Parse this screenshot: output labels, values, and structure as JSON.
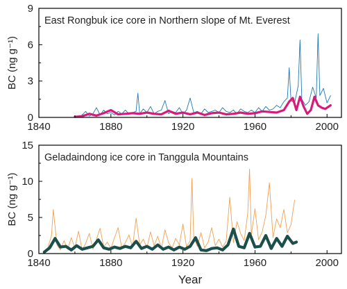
{
  "chart_data": [
    {
      "type": "line",
      "annotation": "East Rongbuk ice core in Northern slope of  Mt. Everest",
      "ylabel": "BC (ng g⁻¹)",
      "xlabel": "",
      "xlim": [
        1840,
        2008
      ],
      "ylim": [
        0,
        9
      ],
      "xticks": [
        1840,
        1880,
        1920,
        1960,
        2000
      ],
      "yticks": [
        0,
        3,
        6,
        9
      ],
      "grid": false,
      "series": [
        {
          "kind": "raw",
          "color": "#1f77b4",
          "x": [
            1862,
            1864,
            1866,
            1868,
            1870,
            1872,
            1874,
            1876,
            1878,
            1880,
            1882,
            1884,
            1886,
            1888,
            1890,
            1892,
            1894,
            1895,
            1896,
            1898,
            1900,
            1902,
            1904,
            1906,
            1908,
            1910,
            1912,
            1914,
            1916,
            1918,
            1920,
            1922,
            1924,
            1926,
            1928,
            1930,
            1932,
            1934,
            1936,
            1938,
            1940,
            1942,
            1944,
            1946,
            1948,
            1950,
            1952,
            1954,
            1956,
            1958,
            1960,
            1962,
            1964,
            1966,
            1968,
            1970,
            1972,
            1974,
            1976,
            1978,
            1979,
            1980,
            1982,
            1984,
            1985,
            1986,
            1988,
            1990,
            1992,
            1994,
            1995,
            1996,
            1998,
            2000,
            2002
          ],
          "y": [
            0.0,
            0.2,
            0.5,
            0.1,
            0.3,
            0.8,
            0.2,
            0.6,
            0.3,
            0.4,
            0.2,
            0.5,
            0.3,
            0.6,
            0.3,
            0.4,
            0.5,
            2.0,
            0.3,
            0.7,
            0.4,
            0.9,
            0.3,
            0.5,
            0.6,
            1.4,
            0.3,
            0.5,
            0.4,
            0.8,
            0.3,
            0.6,
            1.6,
            0.4,
            0.5,
            0.3,
            0.7,
            0.4,
            0.5,
            0.6,
            0.4,
            0.8,
            0.5,
            0.4,
            0.6,
            0.3,
            0.7,
            0.5,
            0.4,
            0.6,
            0.4,
            0.8,
            0.5,
            0.9,
            0.6,
            0.7,
            1.0,
            0.8,
            1.3,
            1.6,
            4.1,
            1.4,
            1.2,
            2.6,
            6.4,
            1.5,
            1.0,
            1.3,
            2.5,
            1.6,
            6.9,
            1.8,
            2.4,
            1.2,
            1.8
          ]
        },
        {
          "kind": "smoothed",
          "color": "#d81b7a",
          "x": [
            1860,
            1864,
            1868,
            1872,
            1876,
            1880,
            1884,
            1888,
            1892,
            1896,
            1900,
            1904,
            1908,
            1912,
            1916,
            1920,
            1924,
            1928,
            1932,
            1936,
            1940,
            1944,
            1948,
            1952,
            1956,
            1960,
            1964,
            1968,
            1972,
            1976,
            1979,
            1981,
            1983,
            1985,
            1987,
            1989,
            1991,
            1993,
            1995,
            1997,
            1999,
            2002
          ],
          "y": [
            0.05,
            0.1,
            0.3,
            0.15,
            0.35,
            0.6,
            0.25,
            0.3,
            0.35,
            0.3,
            0.4,
            0.3,
            0.25,
            0.55,
            0.3,
            0.4,
            0.25,
            0.4,
            0.2,
            0.35,
            0.4,
            0.25,
            0.3,
            0.4,
            0.3,
            0.35,
            0.5,
            0.45,
            0.4,
            0.6,
            1.3,
            1.6,
            0.6,
            1.7,
            0.9,
            0.3,
            0.6,
            1.7,
            1.0,
            0.8,
            0.7,
            1.0
          ]
        }
      ]
    },
    {
      "type": "line",
      "annotation": "Geladaindong ice core in Tanggula Mountains",
      "ylabel": "BC (ng g⁻¹)",
      "xlabel": "Year",
      "xlim": [
        1840,
        2008
      ],
      "ylim": [
        0,
        15
      ],
      "xticks": [
        1840,
        1880,
        1920,
        1960,
        2000
      ],
      "yticks": [
        0,
        5,
        10,
        15
      ],
      "grid": false,
      "series": [
        {
          "kind": "raw",
          "color": "#f0a050",
          "x": [
            1843,
            1845,
            1847,
            1848,
            1850,
            1852,
            1854,
            1856,
            1858,
            1860,
            1862,
            1864,
            1866,
            1868,
            1870,
            1872,
            1874,
            1876,
            1878,
            1880,
            1882,
            1884,
            1886,
            1888,
            1890,
            1892,
            1894,
            1896,
            1898,
            1900,
            1902,
            1904,
            1906,
            1908,
            1910,
            1912,
            1914,
            1916,
            1918,
            1920,
            1922,
            1924,
            1925,
            1926,
            1928,
            1930,
            1932,
            1934,
            1936,
            1938,
            1940,
            1942,
            1944,
            1946,
            1948,
            1950,
            1952,
            1954,
            1956,
            1957,
            1958,
            1960,
            1962,
            1964,
            1966,
            1968,
            1970,
            1972,
            1974,
            1976,
            1978,
            1980,
            1982
          ],
          "y": [
            0.3,
            0.8,
            2.5,
            6.1,
            1.2,
            0.5,
            1.8,
            0.6,
            2.2,
            0.8,
            3.1,
            0.5,
            1.4,
            2.8,
            0.6,
            2.0,
            3.5,
            0.9,
            1.6,
            0.7,
            2.2,
            3.6,
            0.8,
            1.5,
            2.6,
            0.9,
            4.9,
            1.2,
            2.0,
            0.8,
            3.0,
            1.1,
            2.4,
            0.7,
            3.3,
            1.5,
            0.8,
            2.1,
            1.2,
            4.1,
            0.9,
            1.8,
            10.4,
            2.2,
            1.0,
            2.9,
            0.8,
            1.6,
            3.6,
            1.1,
            2.0,
            0.9,
            1.7,
            7.8,
            1.5,
            4.4,
            2.8,
            1.8,
            5.6,
            11.7,
            2.6,
            6.2,
            1.9,
            3.0,
            5.3,
            9.8,
            2.2,
            4.8,
            3.6,
            6.1,
            2.9,
            4.0,
            7.4
          ]
        },
        {
          "kind": "smoothed",
          "color": "#1b4f4a",
          "x": [
            1843,
            1846,
            1849,
            1852,
            1855,
            1858,
            1861,
            1864,
            1867,
            1870,
            1873,
            1876,
            1879,
            1882,
            1885,
            1888,
            1891,
            1894,
            1897,
            1900,
            1903,
            1906,
            1909,
            1912,
            1915,
            1918,
            1921,
            1924,
            1927,
            1930,
            1933,
            1936,
            1939,
            1942,
            1945,
            1948,
            1951,
            1954,
            1957,
            1960,
            1963,
            1966,
            1969,
            1972,
            1975,
            1978,
            1981,
            1983
          ],
          "y": [
            0.2,
            0.8,
            2.1,
            0.9,
            1.0,
            0.5,
            1.1,
            0.6,
            0.8,
            1.0,
            1.9,
            0.8,
            0.6,
            0.9,
            0.7,
            1.0,
            0.8,
            1.7,
            0.7,
            1.0,
            0.6,
            1.2,
            0.6,
            0.9,
            0.5,
            0.9,
            0.6,
            1.0,
            2.2,
            0.5,
            0.4,
            0.7,
            0.8,
            0.5,
            1.2,
            3.4,
            1.0,
            0.8,
            2.8,
            0.9,
            1.0,
            2.5,
            0.7,
            2.1,
            1.0,
            2.4,
            1.4,
            1.6
          ]
        }
      ]
    }
  ]
}
